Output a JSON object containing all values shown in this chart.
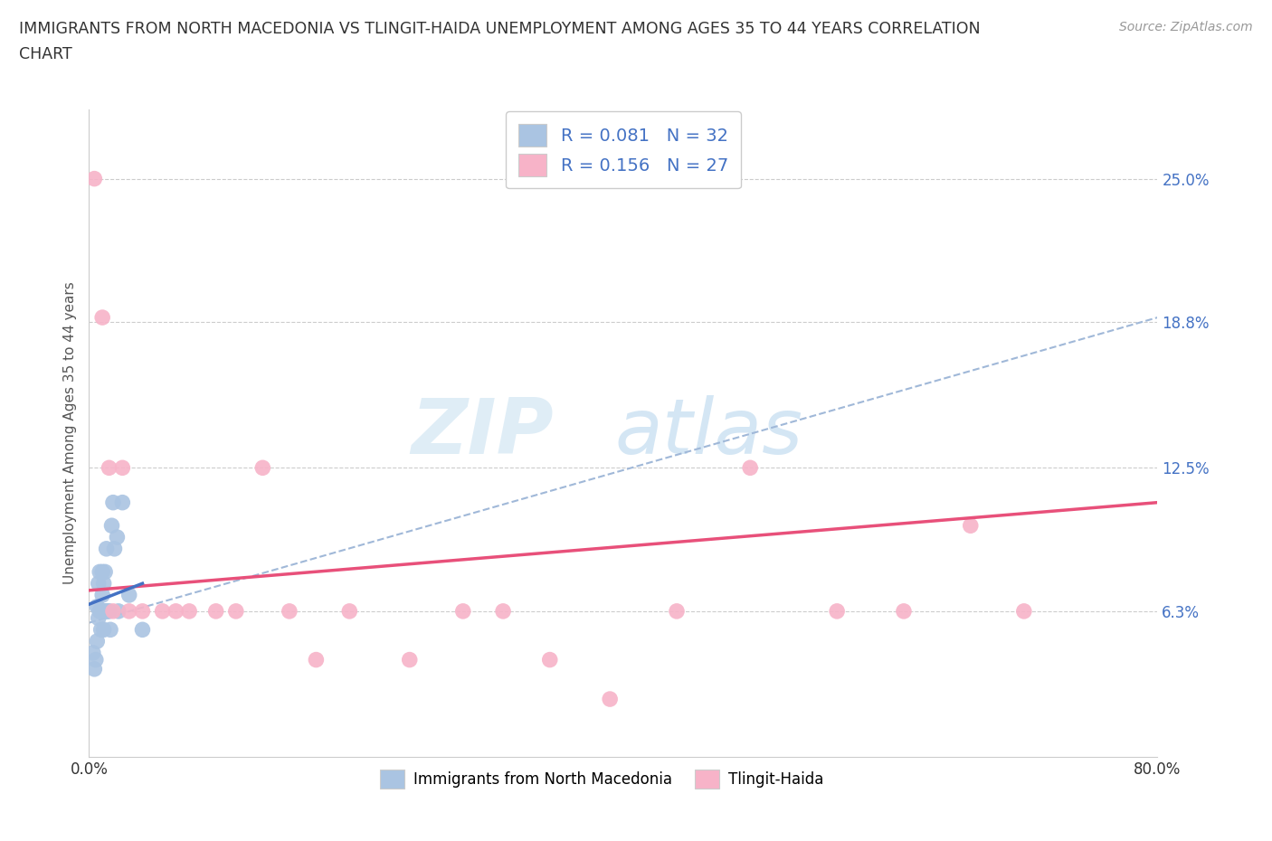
{
  "title_line1": "IMMIGRANTS FROM NORTH MACEDONIA VS TLINGIT-HAIDA UNEMPLOYMENT AMONG AGES 35 TO 44 YEARS CORRELATION",
  "title_line2": "CHART",
  "source": "Source: ZipAtlas.com",
  "ylabel": "Unemployment Among Ages 35 to 44 years",
  "xlim": [
    0.0,
    0.8
  ],
  "ylim": [
    0.0,
    0.28
  ],
  "ytick_positions": [
    0.063,
    0.125,
    0.188,
    0.25
  ],
  "ytick_labels": [
    "6.3%",
    "12.5%",
    "18.8%",
    "25.0%"
  ],
  "R_blue": 0.081,
  "N_blue": 32,
  "R_pink": 0.156,
  "N_pink": 27,
  "blue_scatter_color": "#aac4e2",
  "pink_scatter_color": "#f7b3c8",
  "blue_line_color": "#4472c4",
  "pink_line_color": "#e8507a",
  "dashed_line_color": "#a0b8d8",
  "legend_label_blue": "Immigrants from North Macedonia",
  "legend_label_pink": "Tlingit-Haida",
  "watermark_zip": "ZIP",
  "watermark_atlas": "atlas",
  "blue_scatter_x": [
    0.003,
    0.004,
    0.005,
    0.006,
    0.006,
    0.007,
    0.007,
    0.008,
    0.008,
    0.009,
    0.009,
    0.01,
    0.01,
    0.01,
    0.011,
    0.011,
    0.011,
    0.012,
    0.012,
    0.013,
    0.013,
    0.014,
    0.015,
    0.016,
    0.017,
    0.018,
    0.019,
    0.021,
    0.022,
    0.025,
    0.03,
    0.04
  ],
  "blue_scatter_y": [
    0.045,
    0.038,
    0.042,
    0.05,
    0.065,
    0.06,
    0.075,
    0.063,
    0.08,
    0.063,
    0.055,
    0.063,
    0.07,
    0.08,
    0.063,
    0.075,
    0.055,
    0.063,
    0.08,
    0.063,
    0.09,
    0.063,
    0.063,
    0.055,
    0.1,
    0.11,
    0.09,
    0.095,
    0.063,
    0.11,
    0.07,
    0.055
  ],
  "pink_scatter_x": [
    0.004,
    0.01,
    0.015,
    0.018,
    0.025,
    0.03,
    0.04,
    0.055,
    0.065,
    0.075,
    0.095,
    0.11,
    0.13,
    0.15,
    0.17,
    0.195,
    0.24,
    0.28,
    0.31,
    0.345,
    0.39,
    0.44,
    0.495,
    0.56,
    0.61,
    0.66,
    0.7
  ],
  "pink_scatter_y": [
    0.25,
    0.19,
    0.125,
    0.063,
    0.125,
    0.063,
    0.063,
    0.063,
    0.063,
    0.063,
    0.063,
    0.063,
    0.125,
    0.063,
    0.042,
    0.063,
    0.042,
    0.063,
    0.063,
    0.042,
    0.025,
    0.063,
    0.125,
    0.063,
    0.063,
    0.1,
    0.063
  ],
  "blue_trend_x": [
    0.0,
    0.04
  ],
  "blue_trend_y": [
    0.066,
    0.075
  ],
  "pink_trend_x": [
    0.0,
    0.8
  ],
  "pink_trend_y": [
    0.072,
    0.11
  ],
  "dashed_trend_x": [
    0.0,
    0.8
  ],
  "dashed_trend_y": [
    0.058,
    0.19
  ]
}
